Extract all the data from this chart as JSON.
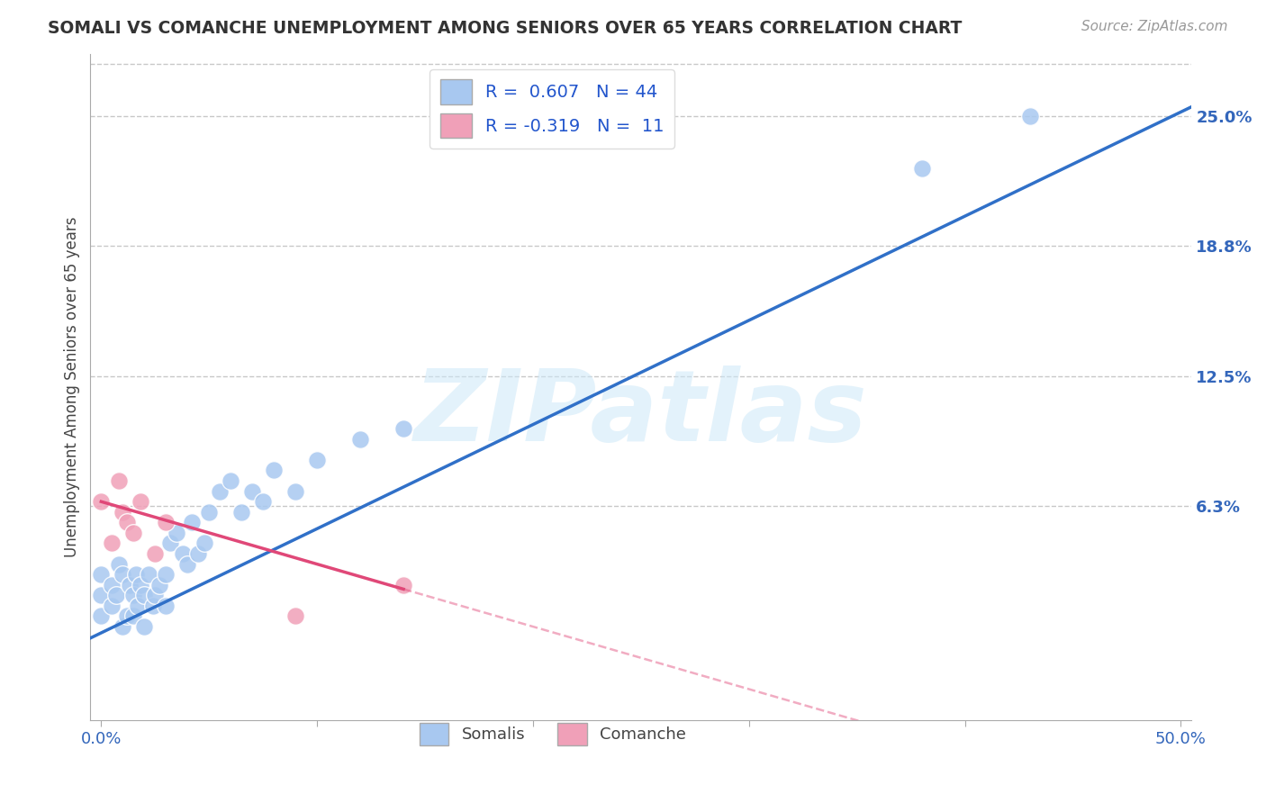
{
  "title": "SOMALI VS COMANCHE UNEMPLOYMENT AMONG SENIORS OVER 65 YEARS CORRELATION CHART",
  "source": "Source: ZipAtlas.com",
  "xlabel": "",
  "ylabel": "Unemployment Among Seniors over 65 years",
  "xlim": [
    -0.005,
    0.505
  ],
  "ylim": [
    -0.04,
    0.28
  ],
  "xticks": [
    0.0,
    0.1,
    0.2,
    0.3,
    0.4,
    0.5
  ],
  "xticklabels": [
    "0.0%",
    "",
    "",
    "",
    "",
    "50.0%"
  ],
  "yticks": [
    0.063,
    0.125,
    0.188,
    0.25
  ],
  "yticklabels": [
    "6.3%",
    "12.5%",
    "18.8%",
    "25.0%"
  ],
  "grid_color": "#c8c8c8",
  "background_color": "#ffffff",
  "somali_color": "#a8c8f0",
  "comanche_color": "#f0a0b8",
  "somali_R": 0.607,
  "somali_N": 44,
  "comanche_R": -0.319,
  "comanche_N": 11,
  "somali_line_color": "#3070c8",
  "comanche_line_color": "#e04878",
  "watermark": "ZIPatlas",
  "somali_intercept": 0.002,
  "somali_slope": 0.5,
  "comanche_intercept": 0.065,
  "comanche_slope": -0.3,
  "somali_points_x": [
    0.0,
    0.0,
    0.0,
    0.005,
    0.005,
    0.007,
    0.008,
    0.01,
    0.01,
    0.012,
    0.013,
    0.015,
    0.015,
    0.016,
    0.017,
    0.018,
    0.02,
    0.02,
    0.022,
    0.024,
    0.025,
    0.027,
    0.03,
    0.03,
    0.032,
    0.035,
    0.038,
    0.04,
    0.042,
    0.045,
    0.048,
    0.05,
    0.055,
    0.06,
    0.065,
    0.07,
    0.075,
    0.08,
    0.09,
    0.1,
    0.12,
    0.14,
    0.38,
    0.43
  ],
  "somali_points_y": [
    0.01,
    0.02,
    0.03,
    0.015,
    0.025,
    0.02,
    0.035,
    0.005,
    0.03,
    0.01,
    0.025,
    0.01,
    0.02,
    0.03,
    0.015,
    0.025,
    0.005,
    0.02,
    0.03,
    0.015,
    0.02,
    0.025,
    0.015,
    0.03,
    0.045,
    0.05,
    0.04,
    0.035,
    0.055,
    0.04,
    0.045,
    0.06,
    0.07,
    0.075,
    0.06,
    0.07,
    0.065,
    0.08,
    0.07,
    0.085,
    0.095,
    0.1,
    0.225,
    0.25
  ],
  "comanche_points_x": [
    0.0,
    0.005,
    0.008,
    0.01,
    0.012,
    0.015,
    0.018,
    0.025,
    0.03,
    0.09,
    0.14
  ],
  "comanche_points_y": [
    0.065,
    0.045,
    0.075,
    0.06,
    0.055,
    0.05,
    0.065,
    0.04,
    0.055,
    0.01,
    0.025
  ]
}
